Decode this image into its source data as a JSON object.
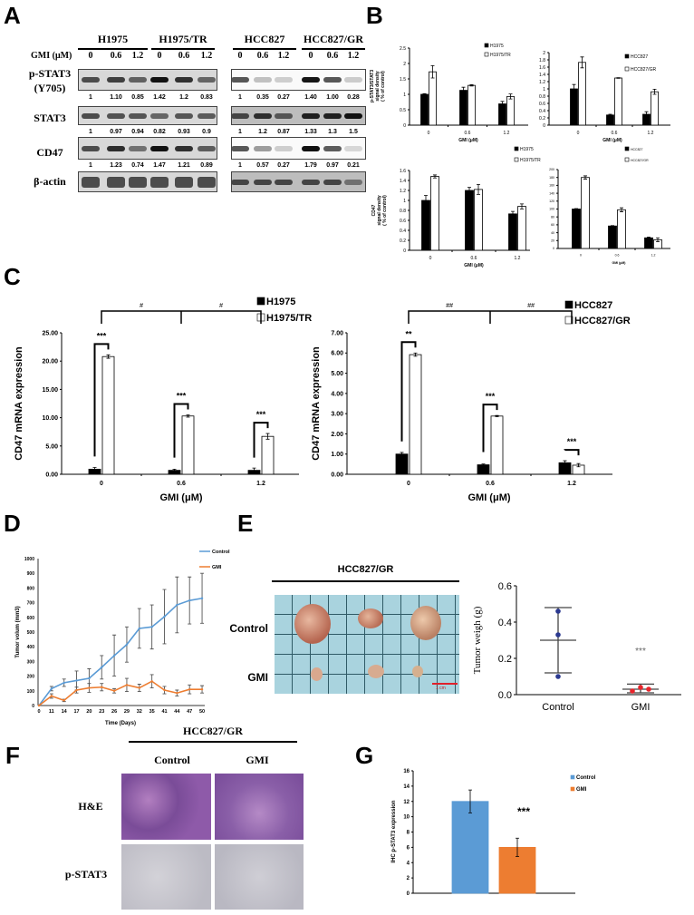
{
  "panel_letters": {
    "A": "A",
    "B": "B",
    "C": "C",
    "D": "D",
    "E": "E",
    "F": "F",
    "G": "G"
  },
  "blot": {
    "gmi_label": "GMI  (μM)",
    "left": {
      "groups": [
        "H1975",
        "H1975/TR"
      ],
      "doses": [
        "0",
        "0.6",
        "1.2",
        "0",
        "0.6",
        "1.2"
      ]
    },
    "right": {
      "groups": [
        "HCC827",
        "HCC827/GR"
      ],
      "doses": [
        "0",
        "0.6",
        "1.2",
        "0",
        "0.6",
        "1.2"
      ]
    },
    "rows": [
      {
        "label": "p-STAT3",
        "sublabel": "(Y705)",
        "left_values": [
          "1",
          "1.10",
          "0.85",
          "1.42",
          "1.2",
          "0.83"
        ],
        "right_values": [
          "1",
          "0.35",
          "0.27",
          "1.40",
          "1.00",
          "0.28"
        ]
      },
      {
        "label": "STAT3",
        "left_values": [
          "1",
          "0.97",
          "0.94",
          "0.82",
          "0.93",
          "0.9"
        ],
        "right_values": [
          "1",
          "1.2",
          "0.87",
          "1.33",
          "1.3",
          "1.5"
        ]
      },
      {
        "label": "CD47",
        "left_values": [
          "1",
          "1.23",
          "0.74",
          "1.47",
          "1.21",
          "0.89"
        ],
        "right_values": [
          "1",
          "0.57",
          "0.27",
          "1.79",
          "0.97",
          "0.21"
        ]
      },
      {
        "label": "β-actin"
      }
    ]
  },
  "tumor_photo": {
    "title": "HCC827/GR",
    "rows": [
      "Control",
      "GMI"
    ],
    "scale_bar": "1 cm",
    "scale_color": "#e0202a"
  },
  "ihc": {
    "title": "HCC827/GR",
    "columns": [
      "Control",
      "GMI"
    ],
    "rows": [
      "H&E",
      "p-STAT3"
    ]
  },
  "chart_data": [
    {
      "id": "B-pstat3-h1975",
      "type": "bar",
      "categories": [
        "0",
        "0.6",
        "1.2"
      ],
      "xlabel": "GMI (μM)",
      "ylabel": [
        "p-STAT3/STAT3",
        "signal density",
        "( % of control)"
      ],
      "ylim": [
        0,
        2.5
      ],
      "yticks": [
        0,
        0.5,
        1,
        1.5,
        2,
        2.5
      ],
      "ytick_labels": [
        "0",
        "0.5",
        "1",
        "1.5",
        "2",
        "2.5"
      ],
      "series": [
        {
          "name": "H1975",
          "color": "#000000",
          "values": [
            1.0,
            1.13,
            0.69
          ],
          "errors": [
            0.02,
            0.1,
            0.08
          ]
        },
        {
          "name": "H1975/TR",
          "color": "#ffffff",
          "values": [
            1.73,
            1.29,
            0.93
          ],
          "errors": [
            0.2,
            0.02,
            0.08
          ]
        }
      ]
    },
    {
      "id": "B-pstat3-hcc827",
      "type": "bar",
      "categories": [
        "0",
        "0.6",
        "1.2"
      ],
      "xlabel": "GMI (μM)",
      "ylabel": [],
      "ylim": [
        0,
        2
      ],
      "yticks": [
        0,
        0.2,
        0.4,
        0.6,
        0.8,
        1,
        1.2,
        1.4,
        1.6,
        1.8,
        2
      ],
      "ytick_labels": [
        "0",
        "0.2",
        "0.4",
        "0.6",
        "0.8",
        "1",
        "1.2",
        "1.4",
        "1.6",
        "1.8",
        "2"
      ],
      "series": [
        {
          "name": "HCC827",
          "color": "#000000",
          "values": [
            1.0,
            0.28,
            0.3
          ],
          "errors": [
            0.12,
            0.02,
            0.07
          ]
        },
        {
          "name": "HCC827/GR",
          "color": "#ffffff",
          "values": [
            1.73,
            1.3,
            0.92
          ],
          "errors": [
            0.15,
            0.01,
            0.07
          ]
        }
      ]
    },
    {
      "id": "B-cd47-h1975",
      "type": "bar",
      "categories": [
        "0",
        "0.6",
        "1.2"
      ],
      "xlabel": "GMI (μM)",
      "ylabel": [
        "CD47",
        "signal density",
        "( % of control)"
      ],
      "ylim": [
        0,
        1.6
      ],
      "yticks": [
        0,
        0.2,
        0.4,
        0.6,
        0.8,
        1,
        1.2,
        1.4,
        1.6
      ],
      "ytick_labels": [
        "0",
        "0.2",
        "0.4",
        "0.6",
        "0.8",
        "1",
        "1.2",
        "1.4",
        "1.6"
      ],
      "series": [
        {
          "name": "H1975",
          "color": "#000000",
          "values": [
            1.0,
            1.2,
            0.73
          ],
          "errors": [
            0.1,
            0.06,
            0.05
          ]
        },
        {
          "name": "H1975/TR",
          "color": "#ffffff",
          "values": [
            1.48,
            1.22,
            0.88
          ],
          "errors": [
            0.03,
            0.1,
            0.05
          ]
        }
      ]
    },
    {
      "id": "B-cd47-hcc827",
      "type": "bar",
      "categories": [
        "0",
        "0.6",
        "1.2"
      ],
      "xlabel": "GMI (μM)",
      "ylabel": [],
      "ylim": [
        0,
        200
      ],
      "yticks": [
        0,
        20,
        40,
        60,
        80,
        100,
        120,
        140,
        160,
        180,
        200
      ],
      "ytick_labels": [
        "0",
        "20",
        "40",
        "60",
        "80",
        "100",
        "120",
        "140",
        "160",
        "180",
        "200"
      ],
      "series": [
        {
          "name": "HCC827",
          "color": "#000000",
          "values": [
            100,
            57,
            27
          ],
          "errors": [
            1,
            1,
            2
          ]
        },
        {
          "name": "HCC827/GR",
          "color": "#ffffff",
          "values": [
            180,
            98,
            22
          ],
          "errors": [
            4,
            5,
            5
          ]
        }
      ]
    },
    {
      "id": "C-h1975",
      "type": "bar",
      "categories": [
        "0",
        "0.6",
        "1.2"
      ],
      "xlabel": "GMI (μM)",
      "ylabel": [
        "CD47 mRNA expression"
      ],
      "ylim": [
        0,
        25
      ],
      "yticks": [
        0,
        5,
        10,
        15,
        20,
        25
      ],
      "ytick_labels": [
        "0.00",
        "5.00",
        "10.00",
        "15.00",
        "20.00",
        "25.00"
      ],
      "series": [
        {
          "name": "H1975",
          "color": "#000000",
          "values": [
            0.9,
            0.7,
            0.7
          ],
          "errors": [
            0.3,
            0.2,
            0.4
          ]
        },
        {
          "name": "H1975/TR",
          "color": "#ffffff",
          "values": [
            20.8,
            10.3,
            6.7
          ],
          "errors": [
            0.3,
            0.2,
            0.5
          ]
        }
      ],
      "significance": [
        "***",
        "***",
        "***"
      ],
      "group_significance": [
        "#",
        "#"
      ]
    },
    {
      "id": "C-hcc827",
      "type": "bar",
      "categories": [
        "0",
        "0.6",
        "1.2"
      ],
      "xlabel": "GMI (μM)",
      "ylabel": [
        "CD47 mRNA expression"
      ],
      "ylim": [
        0,
        7
      ],
      "yticks": [
        0,
        1,
        2,
        3,
        4,
        5,
        6,
        7
      ],
      "ytick_labels": [
        "0.00",
        "1.00",
        "2.00",
        "3.00",
        "4.00",
        "5.00",
        "6.00",
        "7.00"
      ],
      "series": [
        {
          "name": "HCC827",
          "color": "#000000",
          "values": [
            1.0,
            0.47,
            0.57
          ],
          "errors": [
            0.08,
            0.04,
            0.1
          ]
        },
        {
          "name": "HCC827/GR",
          "color": "#ffffff",
          "values": [
            5.92,
            2.88,
            0.45
          ],
          "errors": [
            0.08,
            0.03,
            0.08
          ]
        }
      ],
      "significance": [
        "**",
        "***",
        "***"
      ],
      "group_significance": [
        "##",
        "##"
      ]
    },
    {
      "id": "D-tumor-volume",
      "type": "line",
      "xlabel": "Time (Days)",
      "ylabel": "Tumor volum (mm3)",
      "ylim": [
        0,
        1000
      ],
      "yticks": [
        0,
        100,
        200,
        300,
        400,
        500,
        600,
        700,
        800,
        900,
        1000
      ],
      "ytick_labels": [
        "0",
        "100",
        "200",
        "300",
        "400",
        "500",
        "600",
        "700",
        "800",
        "900",
        "1000"
      ],
      "x": [
        "0",
        "11",
        "14",
        "17",
        "20",
        "23",
        "26",
        "29",
        "32",
        "35",
        "41",
        "44",
        "47",
        "50"
      ],
      "series": [
        {
          "name": "Control",
          "color": "#5b9bd5",
          "values": [
            0,
            115,
            155,
            170,
            185,
            260,
            340,
            415,
            525,
            535,
            605,
            685,
            715,
            730
          ],
          "errors": [
            0,
            15,
            25,
            65,
            65,
            80,
            140,
            120,
            135,
            150,
            185,
            190,
            160,
            170
          ]
        },
        {
          "name": "GMI",
          "color": "#ed7d31",
          "values": [
            0,
            65,
            35,
            105,
            120,
            125,
            100,
            140,
            120,
            165,
            105,
            85,
            110,
            110
          ],
          "errors": [
            0,
            15,
            8,
            20,
            30,
            25,
            15,
            45,
            25,
            45,
            25,
            20,
            30,
            25
          ]
        }
      ]
    },
    {
      "id": "E-tumor-weight",
      "type": "scatter",
      "categories": [
        "Control",
        "GMI"
      ],
      "ylabel": "Tumor weigh (g)",
      "ylim": [
        0,
        0.6
      ],
      "yticks": [
        0,
        0.2,
        0.4,
        0.6
      ],
      "ytick_labels": [
        "0.0",
        "0.2",
        "0.4",
        "0.6"
      ],
      "groups": [
        {
          "name": "Control",
          "color": "#2b3990",
          "points": [
            0.46,
            0.33,
            0.1
          ],
          "mean": 0.3,
          "sd": 0.18
        },
        {
          "name": "GMI",
          "color": "#e8242b",
          "points": [
            0.02,
            0.04,
            0.03
          ],
          "mean": 0.03,
          "sd": 0.028
        }
      ],
      "annotation": "***"
    },
    {
      "id": "G-ihc-pstat3",
      "type": "bar",
      "categories": [
        ""
      ],
      "ylabel": [
        "IHC p-STAT3 expression"
      ],
      "ylim": [
        0,
        16
      ],
      "yticks": [
        0,
        2,
        4,
        6,
        8,
        10,
        12,
        14,
        16
      ],
      "ytick_labels": [
        "0",
        "2",
        "4",
        "6",
        "8",
        "10",
        "12",
        "14",
        "16"
      ],
      "series": [
        {
          "name": "Control",
          "color": "#5b9bd5",
          "values": [
            12
          ],
          "errors": [
            1.5
          ]
        },
        {
          "name": "GMI",
          "color": "#ed7d31",
          "values": [
            6
          ],
          "errors": [
            1.2
          ]
        }
      ],
      "annotation": "***"
    }
  ]
}
